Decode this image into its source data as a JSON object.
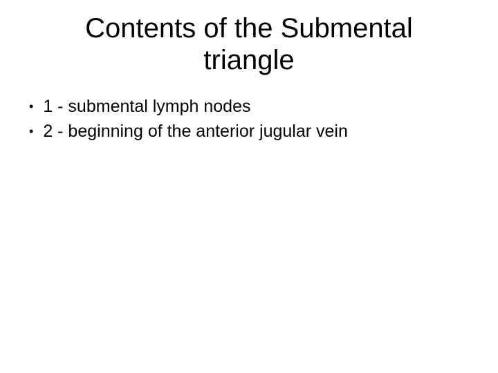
{
  "slide": {
    "title": "Contents of the Submental triangle",
    "title_fontsize": 40,
    "body_fontsize": 25,
    "background_color": "#ffffff",
    "text_color": "#000000",
    "bullets": [
      {
        "text": "1 - submental lymph nodes"
      },
      {
        "text": "2 - beginning of the anterior jugular vein"
      }
    ]
  }
}
